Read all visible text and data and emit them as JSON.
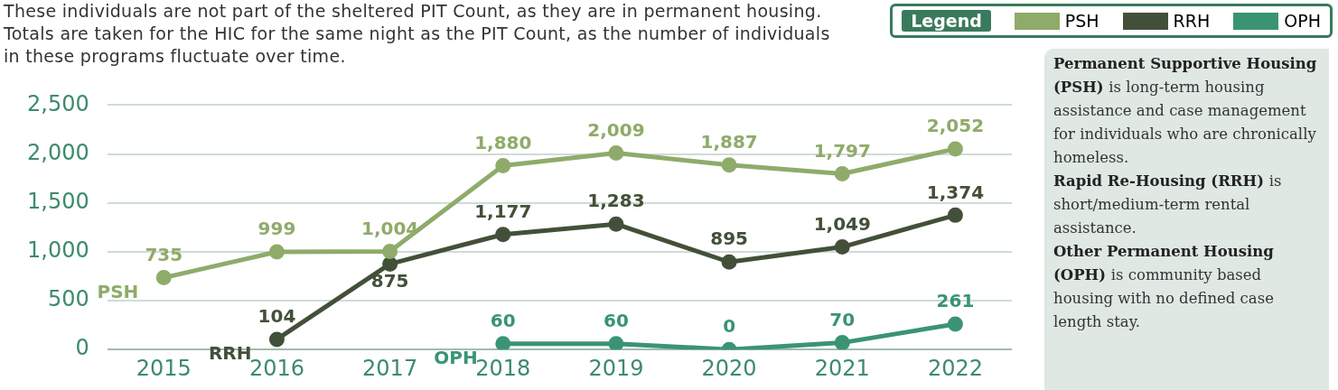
{
  "chart_data": {
    "type": "line",
    "subtitle": "These individuals are not part of the sheltered PIT Count, as they are in permanent housing. Totals are taken for the HIC for the same night as the PIT Count, as the number of individuals in these programs fluctuate over time.",
    "categories": [
      "2015",
      "2016",
      "2017",
      "2018",
      "2019",
      "2020",
      "2021",
      "2022"
    ],
    "series": [
      {
        "name": "PSH",
        "color": "#8fab6a",
        "values": [
          735,
          999,
          1004,
          1880,
          2009,
          1887,
          1797,
          2052
        ],
        "value_labels": [
          "735",
          "999",
          "1,004",
          "1,880",
          "2,009",
          "1,887",
          "1,797",
          "2,052"
        ]
      },
      {
        "name": "RRH",
        "color": "#435039",
        "values": [
          null,
          104,
          875,
          1177,
          1283,
          895,
          1049,
          1374
        ],
        "value_labels": [
          null,
          "104",
          "875",
          "1,177",
          "1,283",
          "895",
          "1,049",
          "1,374"
        ]
      },
      {
        "name": "OPH",
        "color": "#3a9474",
        "values": [
          null,
          null,
          null,
          60,
          60,
          0,
          70,
          261
        ],
        "value_labels": [
          null,
          null,
          null,
          "60",
          "60",
          "0",
          "70",
          "261"
        ]
      }
    ],
    "ylim": [
      0,
      2500
    ],
    "yticks": [
      0,
      500,
      {
        "value": 1000,
        "label": "1,000"
      },
      {
        "value": 1500,
        "label": "1,500"
      },
      {
        "value": 2000,
        "label": "2,000"
      },
      {
        "value": 2500,
        "label": "2,500"
      }
    ],
    "grid": "y",
    "marker": "circle",
    "legend": "top right",
    "legend_title": "Legend",
    "annotations": [
      "Permanent Supportive Housing (PSH)",
      "is long-term housing assistance and case management for individuals who are chronically homeless.",
      "Rapid Re-Housing (RRH)",
      "is short/medium-term rental assistance.",
      "Other Permanent Housing (OPH)",
      "is community based housing with no defined case length stay."
    ]
  }
}
